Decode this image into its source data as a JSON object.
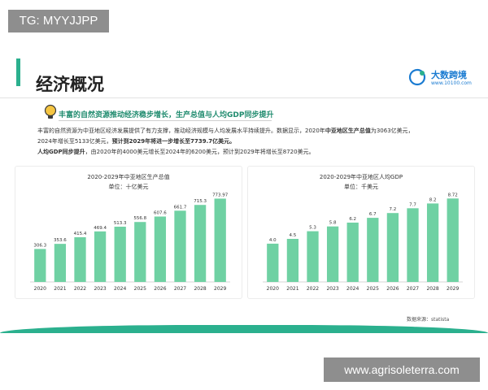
{
  "tag": "TG: MYYJJPP",
  "watermark": "www.agrisoleterra.com",
  "header": {
    "title": "经济概况",
    "logo_name": "大数跨境",
    "logo_url": "www.10100.com"
  },
  "headline": "丰富的自然资源推动经济稳步增长，生产总值与人均GDP同步提升",
  "paragraph": {
    "p1a": "丰富的自然资源为中亚地区经济发展提供了有力支撑，推动经济规模与人均发展水平持续提升。数据显示，2020年",
    "p1b": "中亚地区生产总值",
    "p1c": "为3063亿美元，",
    "p2a": "2024年增长至5133亿美元，",
    "p2b": "预计到2029年将进一步增长至7739.7亿美元。",
    "p3a": "人均GDP同步提升",
    "p3b": "，由2020年的4000美元增长至2024年的6200美元，预计到2029年将增长至8720美元。"
  },
  "source": "数据来源：statista",
  "colors": {
    "accent": "#2bb08e",
    "bar": "#6fd1a3",
    "headline": "#1f8b6e",
    "logo": "#1a7bd1"
  },
  "chart_data": [
    {
      "type": "bar",
      "title": "2020-2029年中亚地区生产总值",
      "unit": "单位：十亿美元",
      "categories": [
        "2020",
        "2021",
        "2022",
        "2023",
        "2024",
        "2025",
        "2026",
        "2027",
        "2028",
        "2029"
      ],
      "values": [
        306.3,
        353.6,
        415.4,
        469.4,
        513.3,
        556.8,
        607.6,
        661.7,
        715.3,
        773.97
      ],
      "labels": [
        "306.3",
        "353.6",
        "415.4",
        "469.4",
        "513.3",
        "556.8",
        "607.6",
        "661.7",
        "715.3",
        "773.97"
      ],
      "ylim": [
        0,
        800
      ]
    },
    {
      "type": "bar",
      "title": "2020-2029年中亚地区人均GDP",
      "unit": "单位：千美元",
      "categories": [
        "2020",
        "2021",
        "2022",
        "2023",
        "2024",
        "2025",
        "2026",
        "2027",
        "2028",
        "2029"
      ],
      "values": [
        4.0,
        4.5,
        5.3,
        5.8,
        6.2,
        6.7,
        7.2,
        7.7,
        8.2,
        8.72
      ],
      "labels": [
        "4.0",
        "4.5",
        "5.3",
        "5.8",
        "6.2",
        "6.7",
        "7.2",
        "7.7",
        "8.2",
        "8.72"
      ],
      "ylim": [
        0,
        9
      ]
    }
  ]
}
